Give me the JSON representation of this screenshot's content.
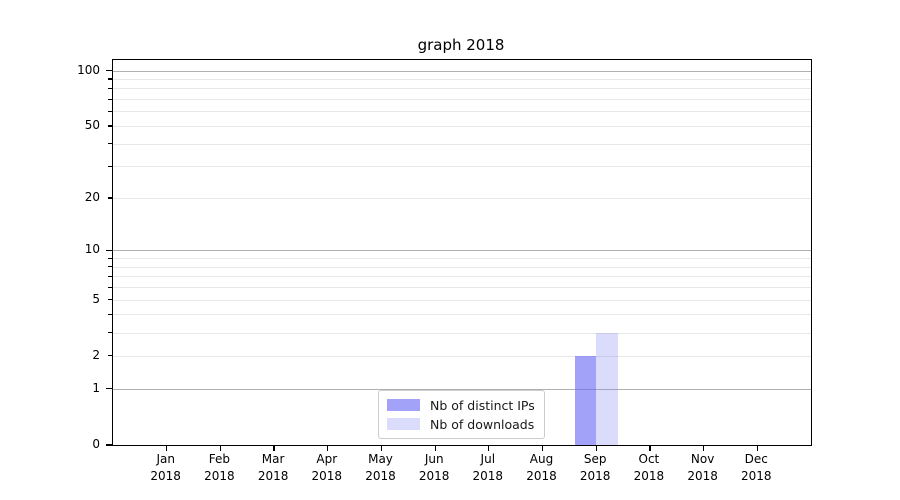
{
  "chart_data": {
    "type": "bar",
    "title": "graph 2018",
    "categories": [
      "Jan",
      "Feb",
      "Mar",
      "Apr",
      "May",
      "Jun",
      "Jul",
      "Aug",
      "Sep",
      "Oct",
      "Nov",
      "Dec"
    ],
    "category_year": "2018",
    "series": [
      {
        "name": "Nb of distinct IPs",
        "color": "rgba(105,105,245,0.62)",
        "values": [
          0,
          0,
          0,
          0,
          0,
          0,
          0,
          0,
          2,
          0,
          0,
          0
        ]
      },
      {
        "name": "Nb of downloads",
        "color": "rgba(125,125,245,0.28)",
        "values": [
          0,
          0,
          0,
          0,
          0,
          0,
          0,
          0,
          3,
          0,
          0,
          0
        ]
      }
    ],
    "xlabel": "",
    "ylabel": "",
    "yaxis": {
      "scale": "log1p",
      "ylim": [
        0,
        114
      ],
      "major_tick_labels": [
        0,
        1,
        2,
        5,
        10,
        20,
        50,
        100
      ],
      "decade_ticks": [
        1,
        10,
        100
      ],
      "minor_ticks": [
        2,
        3,
        4,
        5,
        6,
        7,
        8,
        9,
        20,
        30,
        40,
        50,
        60,
        70,
        80,
        90
      ],
      "grid_major_color": "#b0b0b0",
      "grid_minor_color": "#e8e8e8"
    },
    "legend": {
      "position": "lower center"
    }
  }
}
